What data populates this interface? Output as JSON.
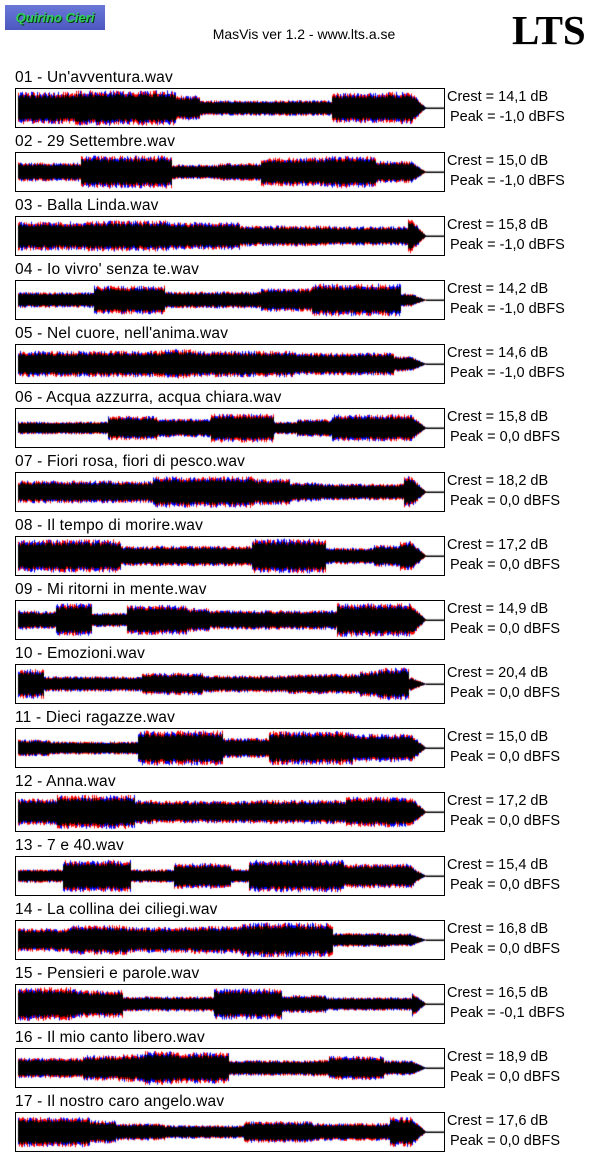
{
  "header": {
    "logo_text": "Quirino Cieri",
    "title": "MasVis ver 1.2 - www.lts.a.se",
    "brand": "LTS"
  },
  "colors": {
    "left_channel": "#ff0000",
    "right_channel": "#0000ff",
    "mid": "#000000",
    "logo_bg": "#5562cc",
    "logo_text": "#2fd05a"
  },
  "tracks": [
    {
      "name": "01 - Un'avventura.wav",
      "crest": "Crest = 14,1 dB",
      "peak": "Peak = -1,0 dBFS"
    },
    {
      "name": "02 - 29 Settembre.wav",
      "crest": "Crest = 15,0 dB",
      "peak": "Peak = -1,0 dBFS"
    },
    {
      "name": "03 - Balla Linda.wav",
      "crest": "Crest = 15,8 dB",
      "peak": "Peak = -1,0 dBFS"
    },
    {
      "name": "04 - Io vivro' senza te.wav",
      "crest": "Crest = 14,2 dB",
      "peak": "Peak = -1,0 dBFS"
    },
    {
      "name": "05 - Nel cuore, nell'anima.wav",
      "crest": "Crest = 14,6 dB",
      "peak": "Peak = -1,0 dBFS"
    },
    {
      "name": "06 - Acqua azzurra, acqua chiara.wav",
      "crest": "Crest = 15,8 dB",
      "peak": "Peak = 0,0 dBFS"
    },
    {
      "name": "07 - Fiori rosa, fiori di pesco.wav",
      "crest": "Crest = 18,2 dB",
      "peak": "Peak = 0,0 dBFS"
    },
    {
      "name": "08 - Il tempo di morire.wav",
      "crest": "Crest = 17,2 dB",
      "peak": "Peak = 0,0 dBFS"
    },
    {
      "name": "09 - Mi ritorni in mente.wav",
      "crest": "Crest = 14,9 dB",
      "peak": "Peak = 0,0 dBFS"
    },
    {
      "name": "10 - Emozioni.wav",
      "crest": "Crest = 20,4 dB",
      "peak": "Peak = 0,0 dBFS"
    },
    {
      "name": "11 - Dieci ragazze.wav",
      "crest": "Crest = 15,0 dB",
      "peak": "Peak = 0,0 dBFS"
    },
    {
      "name": "12 - Anna.wav",
      "crest": "Crest = 17,2 dB",
      "peak": "Peak = 0,0 dBFS"
    },
    {
      "name": "13 - 7 e 40.wav",
      "crest": "Crest = 15,4 dB",
      "peak": "Peak = 0,0 dBFS"
    },
    {
      "name": "14 - La collina dei ciliegi.wav",
      "crest": "Crest = 16,8 dB",
      "peak": "Peak = 0,0 dBFS"
    },
    {
      "name": "15 - Pensieri e parole.wav",
      "crest": "Crest = 16,5 dB",
      "peak": "Peak = -0,1 dBFS"
    },
    {
      "name": "16 - Il mio canto libero.wav",
      "crest": "Crest = 18,9 dB",
      "peak": "Peak = 0,0 dBFS"
    },
    {
      "name": "17 - Il nostro caro angelo.wav",
      "crest": "Crest = 17,6 dB",
      "peak": "Peak = 0,0 dBFS"
    }
  ]
}
